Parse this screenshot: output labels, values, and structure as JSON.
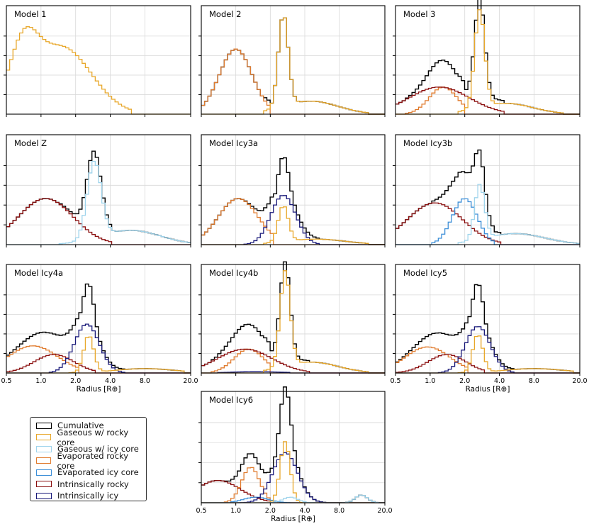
{
  "figure": {
    "xlabel": "Radius [$R_{\\oplus}$]",
    "xlabel_text": "Radius [R⊕]"
  },
  "legend": {
    "items": [
      {
        "label": "Cumulative",
        "color": "#000000"
      },
      {
        "label": "Gaseous w/ rocky core",
        "color": "#E8A72A"
      },
      {
        "label": "Gaseous w/ icy core",
        "color": "#9FD4EC"
      },
      {
        "label": "Evaporated rocky core",
        "color": "#E07B2E"
      },
      {
        "label": "Evaporated icy core",
        "color": "#3D8FD8"
      },
      {
        "label": "Intrinsically rocky",
        "color": "#8B1010"
      },
      {
        "label": "Intrinsically icy",
        "color": "#1A1A7A"
      }
    ]
  },
  "chart_data": [
    {
      "type": "line",
      "title": "Model 1",
      "xscale": "log",
      "xlim": [
        0.5,
        20.0
      ],
      "xticks": [
        "0.5",
        "1.0",
        "2.0",
        "4.0",
        "8.0",
        "20.0"
      ],
      "show_xlabels": false,
      "series": [
        {
          "name": "Gaseous w/ rocky core",
          "color": "#E8A72A",
          "kind": "rocky-gas",
          "components": [
            {
              "mu": 0.7,
              "sigma": 0.28,
              "amp": 0.5
            },
            {
              "mu": 1.5,
              "sigma": 0.6,
              "amp": 0.62
            }
          ],
          "lo": 0.5,
          "hi": 6.0
        }
      ]
    },
    {
      "type": "line",
      "title": "Model 2",
      "xscale": "log",
      "xlim": [
        0.5,
        20.0
      ],
      "xticks": [
        "0.5",
        "1.0",
        "2.0",
        "4.0",
        "8.0",
        "20.0"
      ],
      "show_xlabels": false,
      "series": [
        {
          "name": "Cumulative",
          "color": "#000000",
          "kind": "cumulative"
        },
        {
          "name": "Evaporated rocky core",
          "color": "#E07B2E",
          "kind": "evap-rocky",
          "components": [
            {
              "mu": 1.0,
              "sigma": 0.33,
              "amp": 0.6
            }
          ],
          "lo": 0.5,
          "hi": 2.0
        },
        {
          "name": "Gaseous w/ rocky core",
          "color": "#E8A72A",
          "kind": "rocky-gas",
          "components": [
            {
              "mu": 2.6,
              "sigma": 0.1,
              "amp": 0.85
            },
            {
              "mu": 4.5,
              "sigma": 0.55,
              "amp": 0.12
            }
          ],
          "lo": 1.8,
          "hi": 14.0
        }
      ]
    },
    {
      "type": "line",
      "title": "Model 3",
      "xscale": "log",
      "xlim": [
        0.5,
        20.0
      ],
      "xticks": [
        "0.5",
        "1.0",
        "2.0",
        "4.0",
        "8.0",
        "20.0"
      ],
      "show_xlabels": false,
      "series": [
        {
          "name": "Cumulative",
          "color": "#000000",
          "kind": "cumulative"
        },
        {
          "name": "Evaporated rocky core",
          "color": "#E07B2E",
          "kind": "evap-rocky",
          "components": [
            {
              "mu": 1.3,
              "sigma": 0.28,
              "amp": 0.25
            }
          ],
          "lo": 0.6,
          "hi": 2.0
        },
        {
          "name": "Intrinsically rocky",
          "color": "#8B1010",
          "kind": "intr-rocky",
          "components": [
            {
              "mu": 1.2,
              "sigma": 0.6,
              "amp": 0.25
            }
          ],
          "lo": 0.5,
          "hi": 4.5
        },
        {
          "name": "Gaseous w/ rocky core",
          "color": "#E8A72A",
          "kind": "rocky-gas",
          "components": [
            {
              "mu": 2.7,
              "sigma": 0.1,
              "amp": 0.9
            },
            {
              "mu": 4.5,
              "sigma": 0.55,
              "amp": 0.1
            }
          ],
          "lo": 1.8,
          "hi": 14.0
        }
      ]
    },
    {
      "type": "line",
      "title": "Model Z",
      "xscale": "log",
      "xlim": [
        0.5,
        20.0
      ],
      "xticks": [
        "0.5",
        "1.0",
        "2.0",
        "4.0",
        "8.0",
        "20.0"
      ],
      "show_xlabels": false,
      "series": [
        {
          "name": "Cumulative",
          "color": "#000000",
          "kind": "cumulative"
        },
        {
          "name": "Intrinsically rocky",
          "color": "#8B1010",
          "kind": "intr-rocky",
          "components": [
            {
              "mu": 1.1,
              "sigma": 0.55,
              "amp": 0.42
            }
          ],
          "lo": 0.5,
          "hi": 4.0
        },
        {
          "name": "Gaseous w/ icy core",
          "color": "#9FD4EC",
          "kind": "icy-gas",
          "components": [
            {
              "mu": 2.9,
              "sigma": 0.14,
              "amp": 0.7
            },
            {
              "mu": 6.0,
              "sigma": 0.6,
              "amp": 0.13
            }
          ],
          "lo": 1.4,
          "hi": 20.0
        }
      ]
    },
    {
      "type": "line",
      "title": "Model Icy3a",
      "xscale": "log",
      "xlim": [
        0.5,
        20.0
      ],
      "xticks": [
        "0.5",
        "1.0",
        "2.0",
        "4.0",
        "8.0",
        "20.0"
      ],
      "show_xlabels": false,
      "series": [
        {
          "name": "Cumulative",
          "color": "#000000",
          "kind": "cumulative"
        },
        {
          "name": "Evaporated rocky core",
          "color": "#E07B2E",
          "kind": "evap-rocky",
          "components": [
            {
              "mu": 1.05,
              "sigma": 0.4,
              "amp": 0.42
            }
          ],
          "lo": 0.5,
          "hi": 2.2
        },
        {
          "name": "Intrinsically icy",
          "color": "#1A1A7A",
          "kind": "intr-icy",
          "components": [
            {
              "mu": 2.6,
              "sigma": 0.25,
              "amp": 0.45
            }
          ],
          "lo": 1.2,
          "hi": 5.5
        },
        {
          "name": "Gaseous w/ rocky core",
          "color": "#E8A72A",
          "kind": "rocky-gas",
          "components": [
            {
              "mu": 2.6,
              "sigma": 0.1,
              "amp": 0.33
            },
            {
              "mu": 5.0,
              "sigma": 0.6,
              "amp": 0.05
            }
          ],
          "lo": 1.8,
          "hi": 14.0
        }
      ]
    },
    {
      "type": "line",
      "title": "Model Icy3b",
      "xscale": "log",
      "xlim": [
        0.5,
        20.0
      ],
      "xticks": [
        "0.5",
        "1.0",
        "2.0",
        "4.0",
        "8.0",
        "20.0"
      ],
      "show_xlabels": false,
      "series": [
        {
          "name": "Cumulative",
          "color": "#000000",
          "kind": "cumulative"
        },
        {
          "name": "Intrinsically rocky",
          "color": "#8B1010",
          "kind": "intr-rocky",
          "components": [
            {
              "mu": 1.1,
              "sigma": 0.55,
              "amp": 0.38
            }
          ],
          "lo": 0.5,
          "hi": 4.0
        },
        {
          "name": "Evaporated icy core",
          "color": "#3D8FD8",
          "kind": "evap-icy",
          "components": [
            {
              "mu": 2.0,
              "sigma": 0.25,
              "amp": 0.42
            }
          ],
          "lo": 1.0,
          "hi": 3.5
        },
        {
          "name": "Gaseous w/ icy core",
          "color": "#9FD4EC",
          "kind": "icy-gas",
          "components": [
            {
              "mu": 2.7,
              "sigma": 0.1,
              "amp": 0.5
            },
            {
              "mu": 5.5,
              "sigma": 0.6,
              "amp": 0.1
            }
          ],
          "lo": 1.8,
          "hi": 20.0
        }
      ]
    },
    {
      "type": "line",
      "title": "Model Icy4a",
      "xscale": "log",
      "xlim": [
        0.5,
        20.0
      ],
      "xticks": [
        "0.5",
        "1.0",
        "2.0",
        "4.0",
        "8.0",
        "20.0"
      ],
      "show_xlabels": true,
      "series": [
        {
          "name": "Cumulative",
          "color": "#000000",
          "kind": "cumulative"
        },
        {
          "name": "Evaporated rocky core",
          "color": "#E07B2E",
          "kind": "evap-rocky",
          "components": [
            {
              "mu": 0.85,
              "sigma": 0.5,
              "amp": 0.25
            }
          ],
          "lo": 0.5,
          "hi": 2.2
        },
        {
          "name": "Intrinsically rocky",
          "color": "#8B1010",
          "kind": "intr-rocky",
          "components": [
            {
              "mu": 1.3,
              "sigma": 0.4,
              "amp": 0.17
            }
          ],
          "lo": 0.5,
          "hi": 3.0
        },
        {
          "name": "Intrinsically icy",
          "color": "#1A1A7A",
          "kind": "intr-icy",
          "components": [
            {
              "mu": 2.5,
              "sigma": 0.25,
              "amp": 0.45
            }
          ],
          "lo": 1.2,
          "hi": 5.5
        },
        {
          "name": "Gaseous w/ rocky core",
          "color": "#E8A72A",
          "kind": "rocky-gas",
          "components": [
            {
              "mu": 2.6,
              "sigma": 0.1,
              "amp": 0.34
            },
            {
              "mu": 8.0,
              "sigma": 0.6,
              "amp": 0.04
            }
          ],
          "lo": 1.8,
          "hi": 18.0
        }
      ]
    },
    {
      "type": "line",
      "title": "Model Icy4b",
      "xscale": "log",
      "xlim": [
        0.5,
        20.0
      ],
      "xticks": [
        "0.5",
        "1.0",
        "2.0",
        "4.0",
        "8.0",
        "20.0"
      ],
      "show_xlabels": false,
      "series": [
        {
          "name": "Cumulative",
          "color": "#000000",
          "kind": "cumulative"
        },
        {
          "name": "Evaporated rocky core",
          "color": "#E07B2E",
          "kind": "evap-rocky",
          "components": [
            {
              "mu": 1.3,
              "sigma": 0.3,
              "amp": 0.22
            }
          ],
          "lo": 0.6,
          "hi": 2.0
        },
        {
          "name": "Intrinsically rocky",
          "color": "#8B1010",
          "kind": "intr-rocky",
          "components": [
            {
              "mu": 1.2,
              "sigma": 0.55,
              "amp": 0.22
            }
          ],
          "lo": 0.5,
          "hi": 4.5
        },
        {
          "name": "Intrinsically icy",
          "color": "#1A1A7A",
          "kind": "intr-icy",
          "components": [
            {
              "mu": 1.5,
              "sigma": 0.5,
              "amp": 0.012
            }
          ],
          "lo": 0.7,
          "hi": 3.0
        },
        {
          "name": "Gaseous w/ rocky core",
          "color": "#E8A72A",
          "kind": "rocky-gas",
          "components": [
            {
              "mu": 2.7,
              "sigma": 0.1,
              "amp": 0.88
            },
            {
              "mu": 4.5,
              "sigma": 0.55,
              "amp": 0.1
            }
          ],
          "lo": 1.8,
          "hi": 14.0
        }
      ]
    },
    {
      "type": "line",
      "title": "Model Icy5",
      "xscale": "log",
      "xlim": [
        0.5,
        20.0
      ],
      "xticks": [
        "0.5",
        "1.0",
        "2.0",
        "4.0",
        "8.0",
        "20.0"
      ],
      "show_xlabels": true,
      "series": [
        {
          "name": "Cumulative",
          "color": "#000000",
          "kind": "cumulative"
        },
        {
          "name": "Evaporated rocky core",
          "color": "#E07B2E",
          "kind": "evap-rocky",
          "components": [
            {
              "mu": 0.95,
              "sigma": 0.45,
              "amp": 0.24
            }
          ],
          "lo": 0.5,
          "hi": 2.2
        },
        {
          "name": "Intrinsically rocky",
          "color": "#8B1010",
          "kind": "intr-rocky",
          "components": [
            {
              "mu": 1.4,
              "sigma": 0.38,
              "amp": 0.17
            }
          ],
          "lo": 0.5,
          "hi": 3.0
        },
        {
          "name": "Intrinsically icy",
          "color": "#1A1A7A",
          "kind": "intr-icy",
          "components": [
            {
              "mu": 2.6,
              "sigma": 0.25,
              "amp": 0.43
            }
          ],
          "lo": 1.2,
          "hi": 5.5
        },
        {
          "name": "Gaseous w/ rocky core",
          "color": "#E8A72A",
          "kind": "rocky-gas",
          "components": [
            {
              "mu": 2.6,
              "sigma": 0.1,
              "amp": 0.35
            },
            {
              "mu": 8.0,
              "sigma": 0.6,
              "amp": 0.04
            }
          ],
          "lo": 1.8,
          "hi": 18.0
        }
      ]
    },
    {
      "type": "line",
      "title": "Model Icy6",
      "xscale": "log",
      "xlim": [
        0.5,
        20.0
      ],
      "xticks": [
        "0.5",
        "1.0",
        "2.0",
        "4.0",
        "8.0",
        "20.0"
      ],
      "show_xlabels": true,
      "series": [
        {
          "name": "Cumulative",
          "color": "#000000",
          "kind": "cumulative"
        },
        {
          "name": "Intrinsically rocky",
          "color": "#8B1010",
          "kind": "intr-rocky",
          "components": [
            {
              "mu": 0.7,
              "sigma": 0.45,
              "amp": 0.2
            }
          ],
          "lo": 0.5,
          "hi": 2.0
        },
        {
          "name": "Evaporated rocky core",
          "color": "#E07B2E",
          "kind": "evap-rocky",
          "components": [
            {
              "mu": 1.35,
              "sigma": 0.18,
              "amp": 0.32
            }
          ],
          "lo": 0.8,
          "hi": 2.2
        },
        {
          "name": "Evaporated icy core",
          "color": "#3D8FD8",
          "kind": "evap-icy",
          "components": [
            {
              "mu": 1.5,
              "sigma": 0.25,
              "amp": 0.05
            }
          ],
          "lo": 0.9,
          "hi": 3.0
        },
        {
          "name": "Intrinsically icy",
          "color": "#1A1A7A",
          "kind": "intr-icy",
          "components": [
            {
              "mu": 2.7,
              "sigma": 0.25,
              "amp": 0.45
            }
          ],
          "lo": 1.0,
          "hi": 6.0
        },
        {
          "name": "Gaseous w/ rocky core",
          "color": "#E8A72A",
          "kind": "rocky-gas",
          "components": [
            {
              "mu": 2.7,
              "sigma": 0.1,
              "amp": 0.55
            }
          ],
          "lo": 2.0,
          "hi": 4.5
        },
        {
          "name": "Gaseous w/ icy core",
          "color": "#9FD4EC",
          "kind": "icy-gas",
          "components": [
            {
              "mu": 3.0,
              "sigma": 0.15,
              "amp": 0.05
            },
            {
              "mu": 12.5,
              "sigma": 0.12,
              "amp": 0.07
            }
          ],
          "lo": 2.0,
          "hi": 18.0
        }
      ]
    }
  ]
}
